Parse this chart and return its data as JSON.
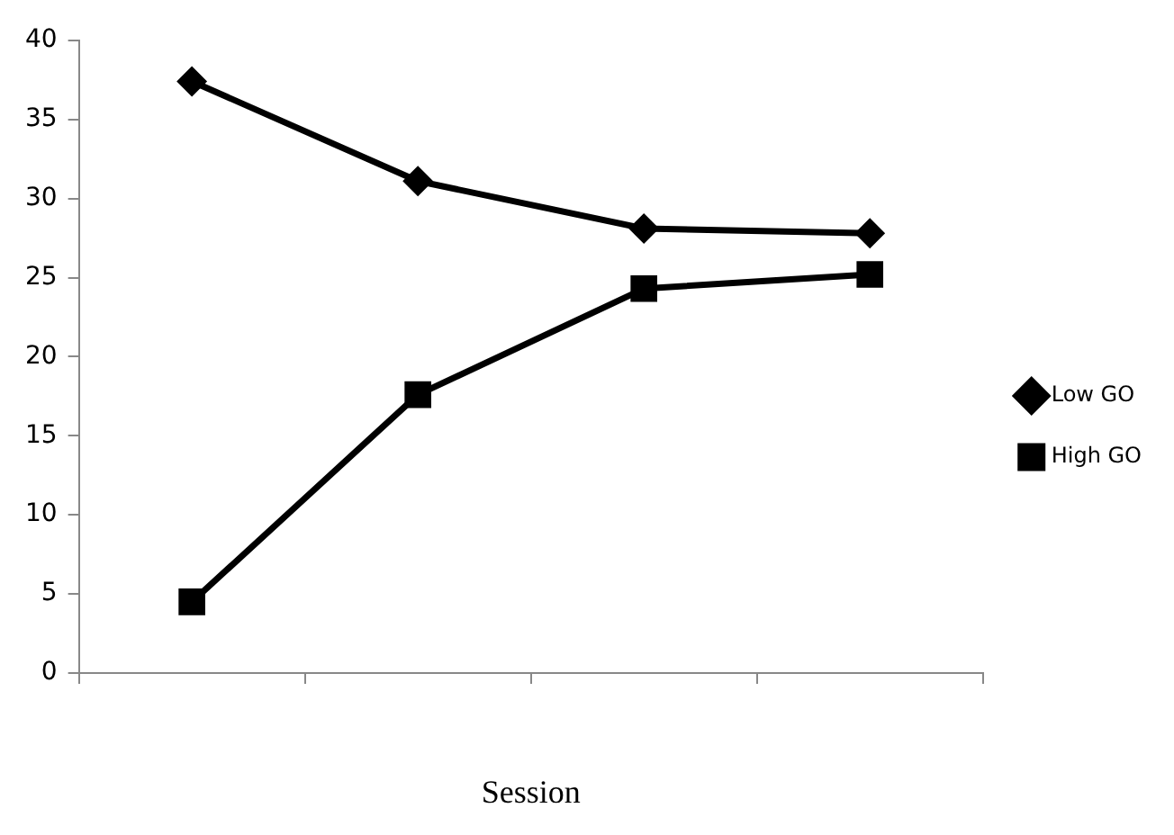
{
  "chart_data": {
    "type": "line",
    "xlabel": "Session",
    "categories": [
      null,
      null,
      null,
      null
    ],
    "ylim": [
      0,
      40
    ],
    "yticks": [
      0,
      5,
      10,
      15,
      20,
      25,
      30,
      35,
      40
    ],
    "grid": false,
    "legend": "right",
    "line_style": "solid",
    "series": [
      {
        "name": "Low GO",
        "color": "#000000",
        "marker": "diamond",
        "values": [
          37.4,
          31.1,
          28.1,
          27.8
        ]
      },
      {
        "name": "High GO",
        "color": "#000000",
        "marker": "square",
        "values": [
          4.5,
          17.6,
          24.3,
          25.2
        ]
      }
    ]
  }
}
